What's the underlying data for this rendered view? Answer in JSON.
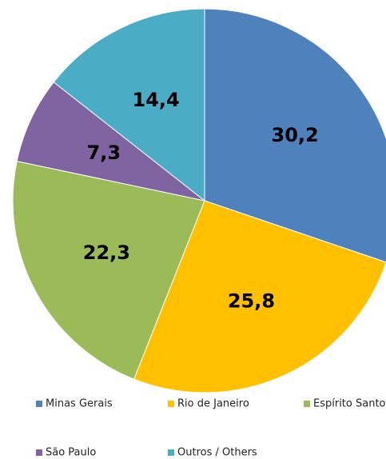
{
  "chart_data": {
    "type": "pie",
    "categories": [
      "Minas Gerais",
      "Rio de Janeiro",
      "Espírito Santo",
      "São Paulo",
      "Outros / Others"
    ],
    "values": [
      30.2,
      25.8,
      22.3,
      7.3,
      14.4
    ],
    "value_labels": [
      "30,2",
      "25,8",
      "22,3",
      "7,3",
      "14,4"
    ],
    "colors": [
      "#4f81bd",
      "#ffc000",
      "#9bbb59",
      "#8064a2",
      "#4bacc6"
    ],
    "legend": "bottom"
  }
}
